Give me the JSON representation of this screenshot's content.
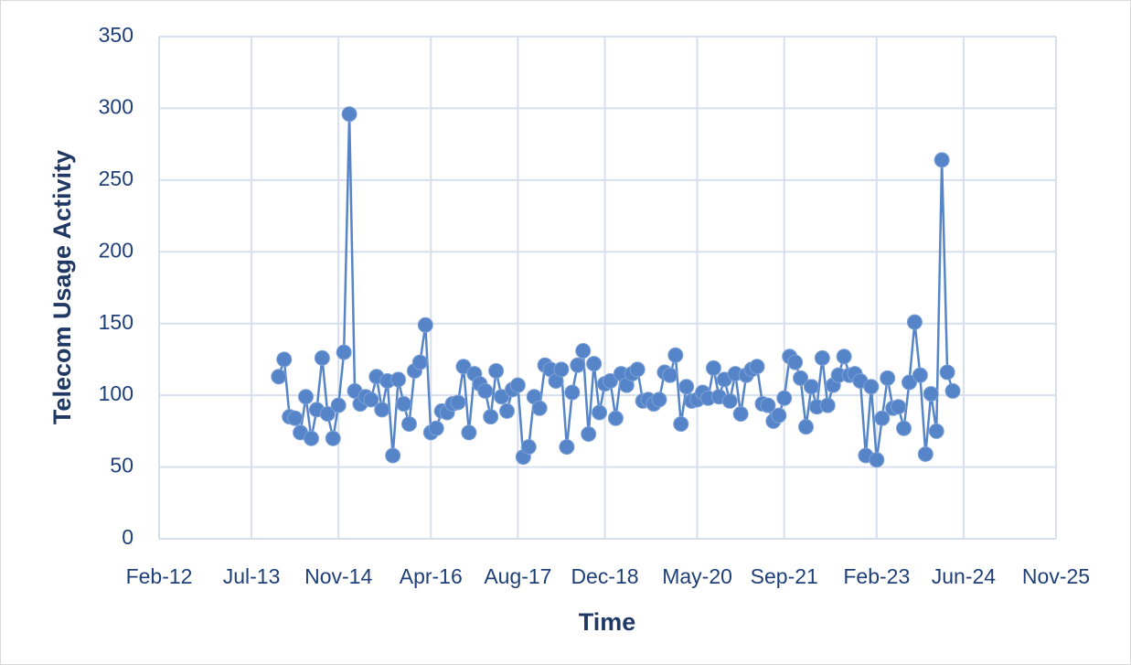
{
  "chart_data": {
    "type": "line",
    "x_label": "Time",
    "y_label": "Telecom  Usage Activity",
    "x": [
      "2013-12",
      "2014-01",
      "2014-02",
      "2014-03",
      "2014-04",
      "2014-05",
      "2014-06",
      "2014-07",
      "2014-08",
      "2014-09",
      "2014-10",
      "2014-11",
      "2014-12",
      "2015-01",
      "2015-02",
      "2015-03",
      "2015-04",
      "2015-05",
      "2015-06",
      "2015-07",
      "2015-08",
      "2015-09",
      "2015-10",
      "2015-11",
      "2015-12",
      "2016-01",
      "2016-02",
      "2016-03",
      "2016-04",
      "2016-05",
      "2016-06",
      "2016-07",
      "2016-08",
      "2016-09",
      "2016-10",
      "2016-11",
      "2016-12",
      "2017-01",
      "2017-02",
      "2017-03",
      "2017-04",
      "2017-05",
      "2017-06",
      "2017-07",
      "2017-08",
      "2017-09",
      "2017-10",
      "2017-11",
      "2017-12",
      "2018-01",
      "2018-02",
      "2018-03",
      "2018-04",
      "2018-05",
      "2018-06",
      "2018-07",
      "2018-08",
      "2018-09",
      "2018-10",
      "2018-11",
      "2018-12",
      "2019-01",
      "2019-02",
      "2019-03",
      "2019-04",
      "2019-05",
      "2019-06",
      "2019-07",
      "2019-08",
      "2019-09",
      "2019-10",
      "2019-11",
      "2019-12",
      "2020-01",
      "2020-02",
      "2020-03",
      "2020-04",
      "2020-05",
      "2020-06",
      "2020-07",
      "2020-08",
      "2020-09",
      "2020-10",
      "2020-11",
      "2020-12",
      "2021-01",
      "2021-02",
      "2021-03",
      "2021-04",
      "2021-05",
      "2021-06",
      "2021-07",
      "2021-08",
      "2021-09",
      "2021-10",
      "2021-11",
      "2021-12",
      "2022-01",
      "2022-02",
      "2022-03",
      "2022-04",
      "2022-05",
      "2022-06",
      "2022-07",
      "2022-08",
      "2022-09",
      "2022-10",
      "2022-11",
      "2022-12",
      "2023-01",
      "2023-02",
      "2023-03",
      "2023-04",
      "2023-05",
      "2023-06",
      "2023-07",
      "2023-08",
      "2023-09",
      "2023-10",
      "2023-11",
      "2023-12",
      "2024-01",
      "2024-02",
      "2024-03",
      "2024-04"
    ],
    "values": [
      113,
      125,
      85,
      84,
      74,
      99,
      70,
      90,
      126,
      87,
      70,
      93,
      130,
      296,
      103,
      94,
      99,
      97,
      113,
      90,
      110,
      58,
      111,
      94,
      80,
      117,
      123,
      149,
      74,
      77,
      89,
      88,
      94,
      95,
      120,
      74,
      115,
      108,
      103,
      85,
      117,
      99,
      89,
      104,
      107,
      57,
      64,
      99,
      91,
      121,
      118,
      110,
      118,
      64,
      102,
      121,
      131,
      73,
      122,
      88,
      108,
      110,
      84,
      115,
      107,
      115,
      118,
      96,
      97,
      94,
      97,
      116,
      114,
      128,
      80,
      106,
      96,
      97,
      102,
      98,
      119,
      99,
      111,
      96,
      115,
      87,
      114,
      118,
      120,
      94,
      93,
      82,
      86,
      98,
      127,
      123,
      112,
      78,
      106,
      92,
      126,
      93,
      107,
      114,
      127,
      114,
      115,
      110,
      58,
      106,
      55,
      84,
      112,
      91,
      92,
      77,
      109,
      151,
      114,
      59,
      101,
      75,
      264,
      116,
      103
    ],
    "color": "#5585c8",
    "xlim": [
      "2012-02",
      "2025-11"
    ],
    "xticks": [
      {
        "value": "2012-02",
        "label": "Feb-12"
      },
      {
        "value": "2013-07",
        "label": "Jul-13"
      },
      {
        "value": "2014-11",
        "label": "Nov-14"
      },
      {
        "value": "2016-04",
        "label": "Apr-16"
      },
      {
        "value": "2017-08",
        "label": "Aug-17"
      },
      {
        "value": "2018-12",
        "label": "Dec-18"
      },
      {
        "value": "2020-05",
        "label": "May-20"
      },
      {
        "value": "2021-09",
        "label": "Sep-21"
      },
      {
        "value": "2023-02",
        "label": "Feb-23"
      },
      {
        "value": "2024-06",
        "label": "Jun-24"
      },
      {
        "value": "2025-11",
        "label": "Nov-25"
      }
    ],
    "ylim": [
      0,
      350
    ],
    "yticks": [
      0,
      50,
      100,
      150,
      200,
      250,
      300,
      350
    ],
    "grid": true
  }
}
